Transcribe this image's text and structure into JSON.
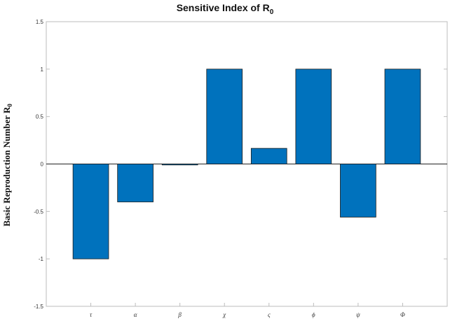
{
  "chart_data": {
    "type": "bar",
    "title": "Sensitive Index of R",
    "title_subscript": "0",
    "ylabel": "Basic Reproduction Number R",
    "ylabel_subscript": "0",
    "categories": [
      "τ",
      "α",
      "β",
      "χ",
      "ς",
      "ϕ",
      "ψ",
      "Φ"
    ],
    "values": [
      -1.0,
      -0.4,
      -0.01,
      1.0,
      0.165,
      1.0,
      -0.56,
      1.0
    ],
    "ylim": [
      -1.5,
      1.5
    ],
    "yticks": [
      "-1.5",
      "-1",
      "-0.5",
      "0",
      "0.5",
      "1",
      "1.5"
    ],
    "grid": false,
    "bar_color": "#0072BD",
    "edge_color": "#1a1a1a"
  }
}
